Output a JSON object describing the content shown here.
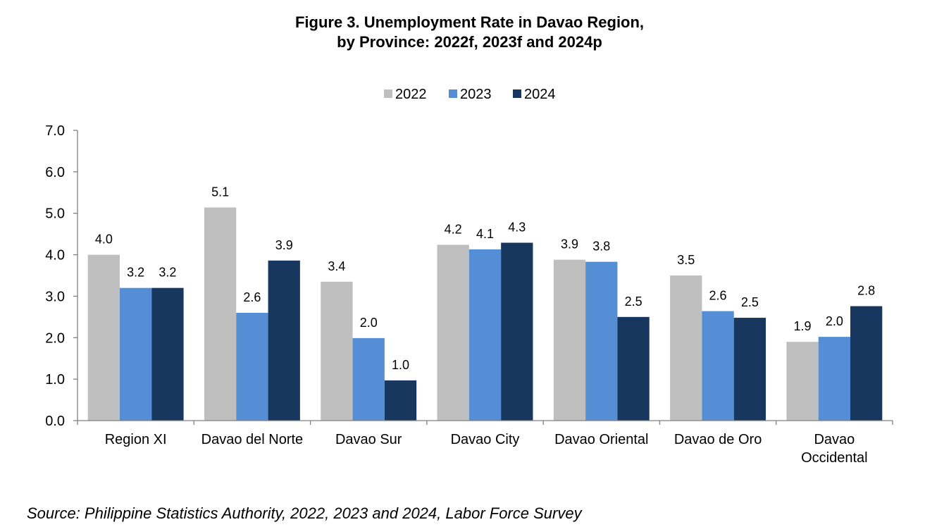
{
  "chart_data": {
    "type": "bar",
    "title_lines": [
      "Figure 3. Unemployment Rate in Davao Region,",
      "by Province: 2022f, 2023f and 2024p"
    ],
    "categories": [
      [
        "Region XI"
      ],
      [
        "Davao del Norte"
      ],
      [
        "Davao Sur"
      ],
      [
        "Davao City"
      ],
      [
        "Davao Oriental"
      ],
      [
        "Davao de Oro"
      ],
      [
        "Davao",
        "Occidental"
      ]
    ],
    "series": [
      {
        "name": "2022",
        "color": "#bfbfbf",
        "values": [
          4.0,
          5.1,
          3.4,
          4.2,
          3.9,
          3.5,
          1.9
        ],
        "heights": [
          4.0,
          5.14,
          3.35,
          4.24,
          3.88,
          3.5,
          1.9
        ]
      },
      {
        "name": "2023",
        "color": "#558ed5",
        "values": [
          3.2,
          2.6,
          2.0,
          4.1,
          3.8,
          2.6,
          2.0
        ],
        "heights": [
          3.2,
          2.6,
          1.99,
          4.13,
          3.83,
          2.64,
          2.02
        ]
      },
      {
        "name": "2024",
        "color": "#17375e",
        "values": [
          3.2,
          3.9,
          1.0,
          4.3,
          2.5,
          2.5,
          2.8
        ],
        "heights": [
          3.2,
          3.86,
          0.97,
          4.29,
          2.5,
          2.48,
          2.76
        ]
      }
    ],
    "data_labels": [
      [
        "4.0",
        "5.1",
        "3.4",
        "4.2",
        "3.9",
        "3.5",
        "1.9"
      ],
      [
        "3.2",
        "2.6",
        "2.0",
        "4.1",
        "3.8",
        "2.6",
        "2.0"
      ],
      [
        "3.2",
        "3.9",
        "1.0",
        "4.3",
        "2.5",
        "2.5",
        "2.8"
      ]
    ],
    "y_ticks": [
      "0.0",
      "1.0",
      "2.0",
      "3.0",
      "4.0",
      "5.0",
      "6.0",
      "7.0"
    ],
    "ylim": [
      0,
      7
    ],
    "legend_position": "top",
    "grid": false
  },
  "source": "Source: Philippine Statistics Authority, 2022, 2023 and 2024, Labor Force Survey"
}
